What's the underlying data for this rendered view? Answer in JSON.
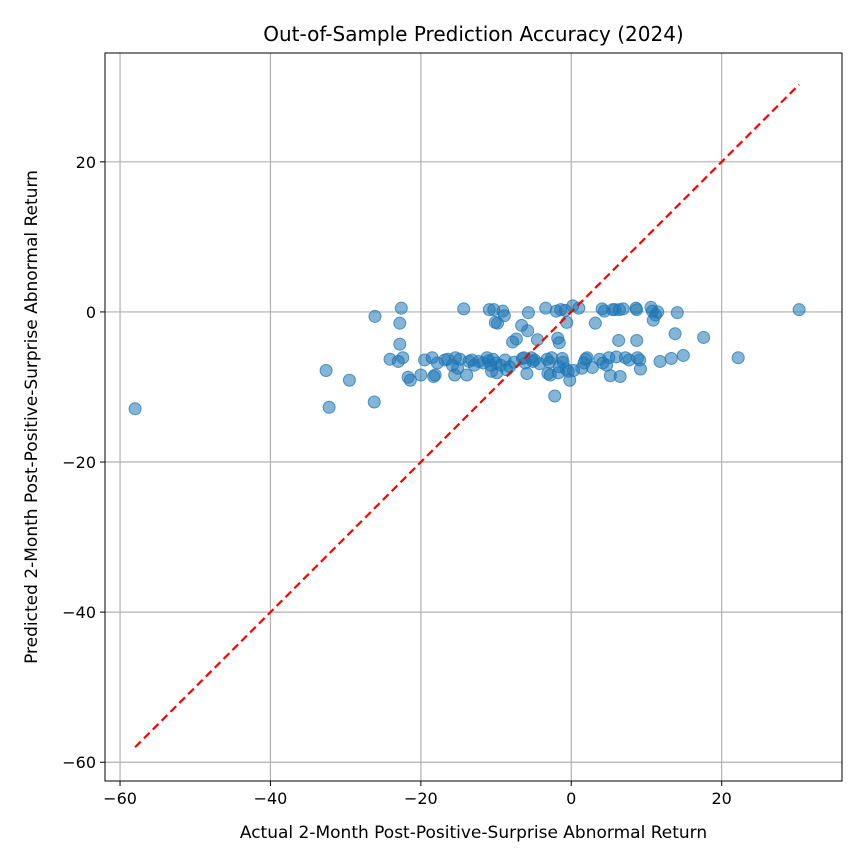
{
  "chart_data": {
    "type": "scatter",
    "title": "Out-of-Sample Prediction Accuracy (2024)",
    "xlabel": "Actual 2-Month Post-Positive-Surprise Abnormal Return",
    "ylabel": "Predicted 2-Month Post-Positive-Surprise Abnormal Return",
    "xlim": [
      -62,
      36
    ],
    "ylim": [
      -62.5,
      34.5
    ],
    "xticks": [
      -60,
      -40,
      -20,
      0,
      20
    ],
    "yticks": [
      -60,
      -40,
      -20,
      0,
      20
    ],
    "grid": true,
    "point_color": "#1f77b4",
    "reference_line": {
      "x": [
        -58,
        30.3
      ],
      "y": [
        -58,
        30.3
      ],
      "color": "#ff0000",
      "style": "dashed"
    },
    "points": [
      [
        -58,
        -12.9
      ],
      [
        -32.6,
        -7.8
      ],
      [
        -32.2,
        -12.7
      ],
      [
        -29.5,
        -9.1
      ],
      [
        -26.2,
        -12
      ],
      [
        -26.1,
        -0.6
      ],
      [
        -24.1,
        -6.3
      ],
      [
        -23,
        -6.6
      ],
      [
        -22.8,
        -1.5
      ],
      [
        -22.8,
        -4.3
      ],
      [
        -22.6,
        0.5
      ],
      [
        -22.4,
        -6.1
      ],
      [
        -21.7,
        -8.7
      ],
      [
        -21.4,
        -9.1
      ],
      [
        -20,
        -8.4
      ],
      [
        -19.5,
        -6.4
      ],
      [
        -18.5,
        -6.1
      ],
      [
        -18.3,
        -8.6
      ],
      [
        -18.1,
        -8.4
      ],
      [
        -17.8,
        -6.8
      ],
      [
        -16.8,
        -6.4
      ],
      [
        -16.4,
        -6.3
      ],
      [
        -15.8,
        -7.1
      ],
      [
        -15.5,
        -8.4
      ],
      [
        -15.4,
        -6.1
      ],
      [
        -15.1,
        -7.5
      ],
      [
        -14.8,
        -6.3
      ],
      [
        -14.3,
        0.4
      ],
      [
        -13.9,
        -8.4
      ],
      [
        -13.6,
        -6.6
      ],
      [
        -13.2,
        -6.4
      ],
      [
        -12.9,
        -7.1
      ],
      [
        -12.3,
        -6.6
      ],
      [
        -11.7,
        -6.8
      ],
      [
        -11.2,
        -6.1
      ],
      [
        -11,
        -6.5
      ],
      [
        -10.9,
        0.3
      ],
      [
        -10.7,
        -7.1
      ],
      [
        -10.6,
        -7.9
      ],
      [
        -10.4,
        -6.3
      ],
      [
        -10.3,
        0.3
      ],
      [
        -10.1,
        -1.4
      ],
      [
        -10,
        -6.8
      ],
      [
        -9.9,
        -8.1
      ],
      [
        -9.8,
        -1.5
      ],
      [
        -9.4,
        -7.1
      ],
      [
        -9.1,
        0.1
      ],
      [
        -8.9,
        -0.5
      ],
      [
        -8.8,
        -6.4
      ],
      [
        -8.6,
        -7.7
      ],
      [
        -8.2,
        -7.3
      ],
      [
        -7.8,
        -4
      ],
      [
        -7.6,
        -6.7
      ],
      [
        -7.3,
        -3.6
      ],
      [
        -6.6,
        -1.8
      ],
      [
        -6.5,
        -6.2
      ],
      [
        -6.3,
        -6.1
      ],
      [
        -6.1,
        -6.8
      ],
      [
        -5.9,
        -8.2
      ],
      [
        -5.8,
        -2.5
      ],
      [
        -5.7,
        -0.1
      ],
      [
        -5.3,
        -6.1
      ],
      [
        -5.1,
        -6.6
      ],
      [
        -4.9,
        -6.4
      ],
      [
        -4.5,
        -3.7
      ],
      [
        -4.2,
        -6.9
      ],
      [
        -3.4,
        0.5
      ],
      [
        -3.2,
        -6.3
      ],
      [
        -3.1,
        -8.2
      ],
      [
        -2.9,
        -6.7
      ],
      [
        -2.8,
        -8.4
      ],
      [
        -2.6,
        -6.1
      ],
      [
        -2.2,
        -11.2
      ],
      [
        -2,
        0.1
      ],
      [
        -1.8,
        -3.5
      ],
      [
        -1.7,
        -8.1
      ],
      [
        -1.6,
        -4.1
      ],
      [
        -1.6,
        -7.3
      ],
      [
        -1.4,
        0.3
      ],
      [
        -1.2,
        -6.2
      ],
      [
        -1.1,
        -6.7
      ],
      [
        -0.8,
        0.2
      ],
      [
        -0.7,
        -7.6
      ],
      [
        -0.6,
        -1.4
      ],
      [
        -0.4,
        -7.9
      ],
      [
        -0.2,
        -9.1
      ],
      [
        0.2,
        0.8
      ],
      [
        0.3,
        -7.8
      ],
      [
        1,
        0.5
      ],
      [
        1.4,
        -7.5
      ],
      [
        1.7,
        -6.8
      ],
      [
        1.9,
        -6.3
      ],
      [
        2.1,
        -6.1
      ],
      [
        2.8,
        -7.4
      ],
      [
        3.2,
        -1.5
      ],
      [
        3.8,
        -6.3
      ],
      [
        4.1,
        0.4
      ],
      [
        4.2,
        -6.8
      ],
      [
        4.4,
        0.1
      ],
      [
        4.7,
        -7.1
      ],
      [
        5,
        -6.1
      ],
      [
        5.2,
        -8.5
      ],
      [
        5.5,
        0.3
      ],
      [
        5.8,
        0.3
      ],
      [
        6,
        -6
      ],
      [
        6.3,
        -3.8
      ],
      [
        6.4,
        0.3
      ],
      [
        6.5,
        -8.6
      ],
      [
        6.9,
        0.4
      ],
      [
        7.2,
        -6.1
      ],
      [
        7.7,
        -6.4
      ],
      [
        8.6,
        0.5
      ],
      [
        8.7,
        0.3
      ],
      [
        8.7,
        -3.8
      ],
      [
        8.8,
        -6.1
      ],
      [
        9.1,
        -6.4
      ],
      [
        9.2,
        -7.6
      ],
      [
        10.6,
        0.6
      ],
      [
        10.8,
        0.1
      ],
      [
        10.9,
        -1.1
      ],
      [
        11.2,
        -0.4
      ],
      [
        11.5,
        0
      ],
      [
        11.8,
        -6.6
      ],
      [
        13.3,
        -6.2
      ],
      [
        13.8,
        -2.9
      ],
      [
        14.1,
        -0.1
      ],
      [
        14.9,
        -5.8
      ],
      [
        17.6,
        -3.4
      ],
      [
        22.2,
        -6.1
      ],
      [
        30.3,
        0.3
      ]
    ]
  }
}
